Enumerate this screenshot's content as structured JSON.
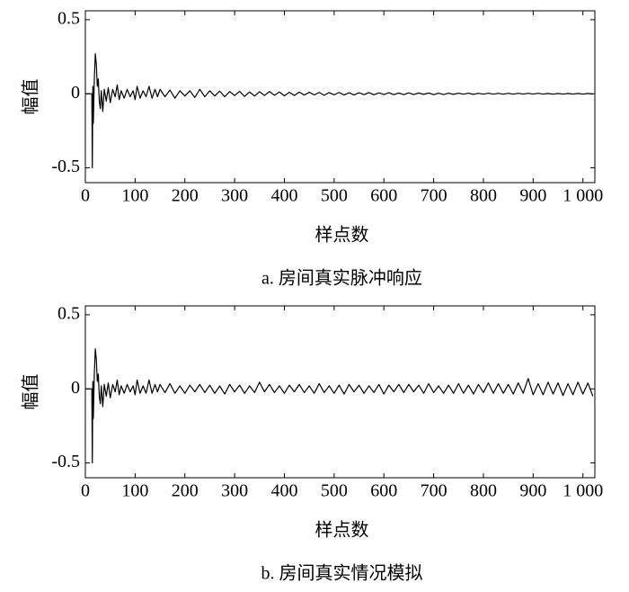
{
  "chart_data": [
    {
      "type": "line",
      "ylabel": "幅值",
      "xlabel": "样点数",
      "caption": "a.  房间真实脉冲响应",
      "color": "#000000",
      "xlim": [
        0,
        1024
      ],
      "ylim": [
        -0.6,
        0.56
      ],
      "xticks": [
        0,
        100,
        200,
        300,
        400,
        500,
        600,
        700,
        800,
        900,
        {
          "value": 1000,
          "label": "1 000"
        }
      ],
      "yticks": [
        -0.5,
        0,
        0.5
      ],
      "x": [
        0,
        5,
        10,
        13,
        14,
        15,
        16,
        18,
        20,
        22,
        24,
        26,
        28,
        30,
        32,
        35,
        38,
        42,
        46,
        50,
        55,
        60,
        64,
        68,
        72,
        78,
        84,
        90,
        96,
        100,
        104,
        110,
        116,
        122,
        128,
        134,
        140,
        145,
        150,
        160,
        170,
        180,
        190,
        200,
        210,
        220,
        230,
        240,
        250,
        260,
        270,
        280,
        290,
        300,
        310,
        320,
        330,
        340,
        350,
        360,
        370,
        380,
        390,
        400,
        410,
        420,
        430,
        440,
        450,
        460,
        470,
        480,
        490,
        500,
        510,
        520,
        530,
        540,
        550,
        560,
        570,
        580,
        590,
        600,
        610,
        620,
        630,
        640,
        650,
        660,
        670,
        680,
        690,
        700,
        710,
        720,
        730,
        740,
        750,
        760,
        770,
        780,
        790,
        800,
        810,
        820,
        830,
        840,
        850,
        860,
        870,
        880,
        890,
        900,
        910,
        920,
        930,
        940,
        950,
        960,
        970,
        980,
        990,
        1000,
        1010,
        1020
      ],
      "values": [
        0,
        0,
        0,
        0,
        -0.5,
        0.05,
        -0.2,
        0.1,
        0.27,
        0.2,
        0.05,
        0.1,
        -0.05,
        -0.1,
        0.02,
        -0.12,
        0.03,
        -0.05,
        0.04,
        -0.06,
        0.03,
        -0.02,
        0.06,
        -0.04,
        0.02,
        -0.03,
        0.03,
        -0.02,
        0.02,
        -0.04,
        0.05,
        -0.03,
        0.02,
        -0.02,
        0.05,
        -0.03,
        0.03,
        -0.02,
        0.03,
        -0.02,
        0.025,
        -0.03,
        0.02,
        -0.015,
        0.02,
        -0.025,
        0.03,
        -0.02,
        0.02,
        -0.015,
        0.018,
        -0.02,
        0.015,
        -0.012,
        0.016,
        -0.018,
        0.012,
        -0.015,
        0.014,
        -0.012,
        0.015,
        -0.01,
        0.012,
        -0.014,
        0.01,
        -0.012,
        0.011,
        -0.009,
        0.01,
        -0.008,
        0.009,
        -0.01,
        0.008,
        -0.007,
        0.009,
        -0.008,
        0.007,
        -0.008,
        0.007,
        -0.006,
        0.008,
        -0.007,
        0.006,
        -0.005,
        0.007,
        -0.006,
        0.005,
        -0.006,
        0.006,
        -0.005,
        0.005,
        -0.004,
        0.005,
        -0.006,
        0.004,
        -0.005,
        0.004,
        -0.004,
        0.004,
        -0.003,
        0.004,
        -0.004,
        0.003,
        -0.003,
        0.004,
        -0.003,
        0.003,
        -0.003,
        0.003,
        -0.003,
        0.003,
        -0.002,
        0.003,
        -0.002,
        0.003,
        -0.002,
        0.002,
        -0.003,
        0.002,
        -0.002,
        0.002,
        -0.002,
        0.002,
        -0.002,
        0.002,
        -0.002
      ]
    },
    {
      "type": "line",
      "ylabel": "幅值",
      "xlabel": "样点数",
      "caption": "b.  房间真实情况模拟",
      "color": "#000000",
      "xlim": [
        0,
        1024
      ],
      "ylim": [
        -0.6,
        0.56
      ],
      "xticks": [
        0,
        100,
        200,
        300,
        400,
        500,
        600,
        700,
        800,
        900,
        {
          "value": 1000,
          "label": "1 000"
        }
      ],
      "yticks": [
        -0.5,
        0,
        0.5
      ],
      "x": [
        0,
        5,
        10,
        13,
        14,
        15,
        16,
        18,
        20,
        22,
        24,
        26,
        28,
        30,
        32,
        35,
        38,
        42,
        46,
        50,
        55,
        60,
        64,
        68,
        72,
        78,
        84,
        90,
        96,
        100,
        104,
        110,
        116,
        122,
        128,
        134,
        140,
        145,
        150,
        160,
        170,
        180,
        190,
        200,
        210,
        220,
        230,
        240,
        250,
        260,
        270,
        280,
        290,
        300,
        310,
        320,
        330,
        340,
        350,
        360,
        370,
        380,
        390,
        400,
        410,
        420,
        430,
        440,
        450,
        460,
        470,
        480,
        490,
        500,
        510,
        520,
        530,
        540,
        550,
        560,
        570,
        580,
        590,
        600,
        610,
        620,
        630,
        640,
        650,
        660,
        670,
        680,
        690,
        700,
        710,
        720,
        730,
        740,
        750,
        760,
        770,
        780,
        790,
        800,
        810,
        820,
        830,
        840,
        850,
        860,
        870,
        880,
        890,
        900,
        910,
        920,
        930,
        940,
        950,
        960,
        970,
        980,
        990,
        1000,
        1010,
        1020
      ],
      "values": [
        0,
        0,
        0,
        0,
        -0.5,
        0.05,
        -0.2,
        0.1,
        0.27,
        0.2,
        0.05,
        0.1,
        -0.05,
        -0.1,
        0.02,
        -0.12,
        0.03,
        -0.05,
        0.04,
        -0.06,
        0.03,
        -0.02,
        0.06,
        -0.04,
        0.02,
        -0.03,
        0.03,
        -0.02,
        0.02,
        -0.04,
        0.06,
        -0.03,
        0.02,
        -0.03,
        0.06,
        -0.03,
        0.03,
        -0.02,
        0.03,
        -0.025,
        0.035,
        -0.03,
        0.02,
        -0.03,
        0.025,
        -0.02,
        0.03,
        -0.025,
        0.025,
        -0.03,
        0.02,
        -0.035,
        0.03,
        -0.02,
        0.025,
        -0.03,
        0.02,
        -0.025,
        0.045,
        -0.02,
        0.03,
        -0.025,
        0.02,
        -0.03,
        0.025,
        -0.02,
        0.03,
        -0.025,
        0.02,
        -0.03,
        0.035,
        -0.025,
        0.02,
        -0.03,
        0.025,
        -0.035,
        0.03,
        -0.02,
        0.025,
        -0.03,
        0.02,
        -0.025,
        0.03,
        -0.035,
        0.025,
        -0.02,
        0.03,
        -0.025,
        0.03,
        -0.02,
        0.025,
        -0.03,
        0.035,
        -0.025,
        0.02,
        -0.03,
        0.025,
        -0.03,
        0.035,
        -0.03,
        0.025,
        -0.035,
        0.03,
        -0.025,
        0.04,
        -0.03,
        0.035,
        -0.03,
        0.03,
        -0.035,
        0.04,
        -0.03,
        0.07,
        -0.04,
        0.035,
        -0.04,
        0.045,
        -0.035,
        0.04,
        -0.045,
        0.035,
        -0.04,
        0.045,
        -0.035,
        0.04,
        -0.05
      ]
    }
  ]
}
